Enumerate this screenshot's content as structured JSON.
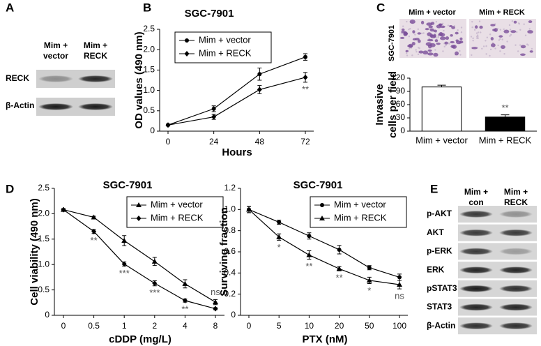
{
  "panel_labels": [
    "A",
    "B",
    "C",
    "D",
    "E"
  ],
  "blot_a": {
    "columns": [
      [
        "Mim +",
        "vector"
      ],
      [
        "Mim +",
        "RECK"
      ]
    ],
    "rows": [
      "RECK",
      "β-Actin"
    ]
  },
  "invasion_images": {
    "cell_line": "SGC-7901",
    "columns": [
      "Mim + vector",
      "Mim + RECK"
    ]
  },
  "blot_e": {
    "columns": [
      [
        "Mim +",
        "con"
      ],
      [
        "Mim +",
        "RECK"
      ]
    ],
    "rows": [
      "p-AKT",
      "AKT",
      "p-ERK",
      "ERK",
      "pSTAT3",
      "STAT3",
      "β-Actin"
    ]
  },
  "chart_data": [
    {
      "type": "line",
      "title": "SGC-7901",
      "xlabel": "Hours",
      "ylabel": "OD values (490 nm)",
      "categories": [
        "0",
        "24",
        "48",
        "72"
      ],
      "ylim": [
        0,
        2.5
      ],
      "yticks": [
        0,
        0.5,
        {
          "value": 1,
          "label": "1.0"
        },
        1.5,
        {
          "value": 2,
          "label": "2.0"
        },
        2.5
      ],
      "legend": "upper left",
      "series": [
        {
          "name": "Mim + vector",
          "color": "#000000",
          "marker": "circle",
          "values": [
            0.15,
            0.55,
            1.4,
            1.82
          ],
          "errors": [
            0.02,
            0.07,
            0.15,
            0.08
          ]
        },
        {
          "name": "Mim + RECK",
          "color": "#000000",
          "marker": "diamond",
          "values": [
            0.15,
            0.35,
            1.02,
            1.32
          ],
          "errors": [
            0.02,
            0.06,
            0.1,
            0.12
          ]
        }
      ],
      "annotations": [
        null,
        null,
        null,
        "**"
      ]
    },
    {
      "type": "bar",
      "ylabel": [
        "Invasive",
        "cells per field"
      ],
      "categories": [
        "Mim + vector",
        "Mim + RECK"
      ],
      "values": [
        100,
        32
      ],
      "errors": [
        4,
        5
      ],
      "colors": [
        "#ffffff",
        "#000000"
      ],
      "ylim": [
        0,
        120
      ],
      "yticks": [
        0,
        30,
        60,
        90,
        120
      ],
      "annotations": [
        null,
        "**"
      ]
    },
    {
      "type": "line",
      "title": "SGC-7901",
      "xlabel": "cDDP (mg/L)",
      "ylabel": "Cell viability (490 nm)",
      "categories": [
        "0",
        "0.5",
        "1",
        "2",
        "4",
        "8"
      ],
      "ylim": [
        0,
        2.5
      ],
      "yticks": [
        0,
        0.5,
        {
          "value": 1,
          "label": "1.0"
        },
        1.5,
        {
          "value": 2,
          "label": "2.0"
        },
        2.5
      ],
      "legend": "upper right",
      "series": [
        {
          "name": "Mim + vector",
          "color": "#000000",
          "marker": "triangle",
          "values": [
            2.08,
            1.93,
            1.47,
            1.06,
            0.62,
            0.26
          ],
          "errors": [
            0.02,
            0.02,
            0.1,
            0.08,
            0.08,
            0.05
          ]
        },
        {
          "name": "Mim + RECK",
          "color": "#000000",
          "marker": "diamond",
          "values": [
            2.08,
            1.65,
            1.01,
            0.63,
            0.29,
            0.13
          ],
          "errors": [
            0.02,
            0.04,
            0.04,
            0.05,
            0.03,
            0.02
          ]
        }
      ],
      "annotations": [
        null,
        "**",
        "***",
        "***",
        "**",
        "ns"
      ]
    },
    {
      "type": "line",
      "title": "SGC-7901",
      "xlabel": "PTX (nM)",
      "ylabel": "Surviving fraction",
      "categories": [
        "0",
        "5",
        "10",
        "20",
        "50",
        "100"
      ],
      "ylim": [
        0,
        1.2
      ],
      "yticks": [
        0,
        0.2,
        0.4,
        0.6,
        0.8,
        {
          "value": 1,
          "label": "1.0"
        },
        1.2
      ],
      "legend": "upper right",
      "series": [
        {
          "name": "Mim + vector",
          "color": "#000000",
          "marker": "circle",
          "values": [
            1.0,
            0.88,
            0.75,
            0.62,
            0.45,
            0.36
          ],
          "errors": [
            0.03,
            0.02,
            0.03,
            0.04,
            0.02,
            0.03
          ]
        },
        {
          "name": "Mim + RECK",
          "color": "#000000",
          "marker": "triangle",
          "values": [
            1.0,
            0.74,
            0.57,
            0.44,
            0.33,
            0.29
          ],
          "errors": [
            0.03,
            0.03,
            0.04,
            0.02,
            0.03,
            0.04
          ]
        }
      ],
      "annotations": [
        null,
        "*",
        "**",
        "**",
        "*",
        "ns"
      ]
    }
  ]
}
